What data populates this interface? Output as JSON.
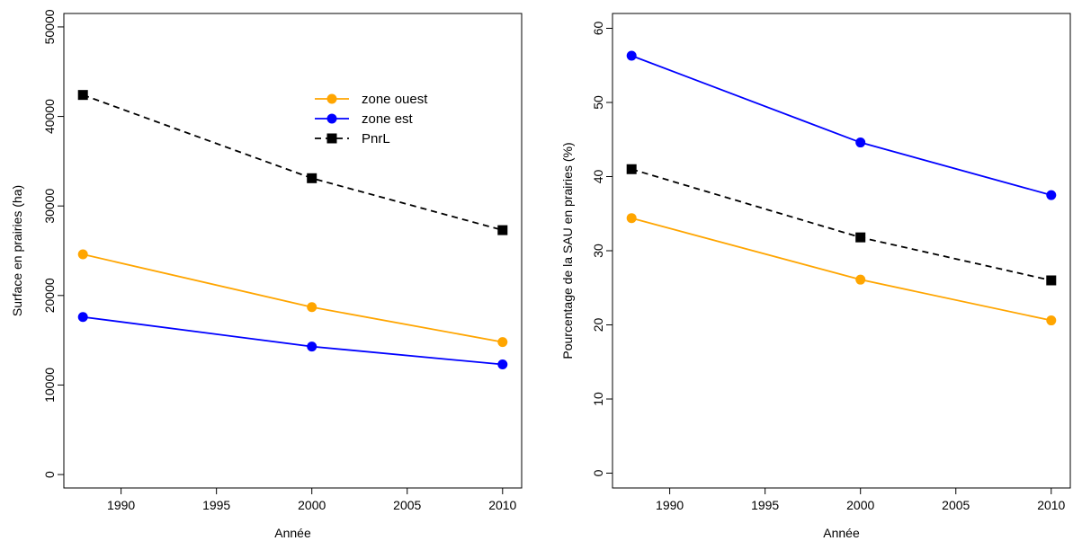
{
  "chart_data": [
    {
      "type": "line",
      "title": "",
      "xlabel": "Année",
      "ylabel": "Surface en prairies (ha)",
      "xlim": [
        1987,
        2011
      ],
      "ylim": [
        -1500,
        51500
      ],
      "xticks": [
        1990,
        1995,
        2000,
        2005,
        2010
      ],
      "yticks": [
        0,
        10000,
        20000,
        30000,
        40000,
        50000
      ],
      "x": [
        1988,
        2000,
        2010
      ],
      "grid": false,
      "legend": "top-center",
      "series": [
        {
          "name": "zone ouest",
          "values": [
            24600,
            18700,
            14800
          ],
          "color": "#FFA500",
          "marker": "circle",
          "line": "solid"
        },
        {
          "name": "zone est",
          "values": [
            17600,
            14300,
            12300
          ],
          "color": "#0000FF",
          "marker": "circle",
          "line": "solid"
        },
        {
          "name": "PnrL",
          "values": [
            42400,
            33100,
            27300
          ],
          "color": "#000000",
          "marker": "square",
          "line": "dashed"
        }
      ]
    },
    {
      "type": "line",
      "title": "",
      "xlabel": "Année",
      "ylabel": "Pourcentage de la SAU en prairies (%)",
      "xlim": [
        1987,
        2011
      ],
      "ylim": [
        -2,
        62
      ],
      "xticks": [
        1990,
        1995,
        2000,
        2005,
        2010
      ],
      "yticks": [
        0,
        10,
        20,
        30,
        40,
        50,
        60
      ],
      "x": [
        1988,
        2000,
        2010
      ],
      "grid": false,
      "series": [
        {
          "values": [
            56.3,
            44.6,
            37.5
          ],
          "color": "#0000FF",
          "marker": "circle",
          "line": "solid"
        },
        {
          "values": [
            41.0,
            31.8,
            26.0
          ],
          "color": "#000000",
          "marker": "square",
          "line": "dashed"
        },
        {
          "values": [
            34.4,
            26.1,
            20.6
          ],
          "color": "#FFA500",
          "marker": "circle",
          "line": "solid"
        }
      ]
    }
  ]
}
